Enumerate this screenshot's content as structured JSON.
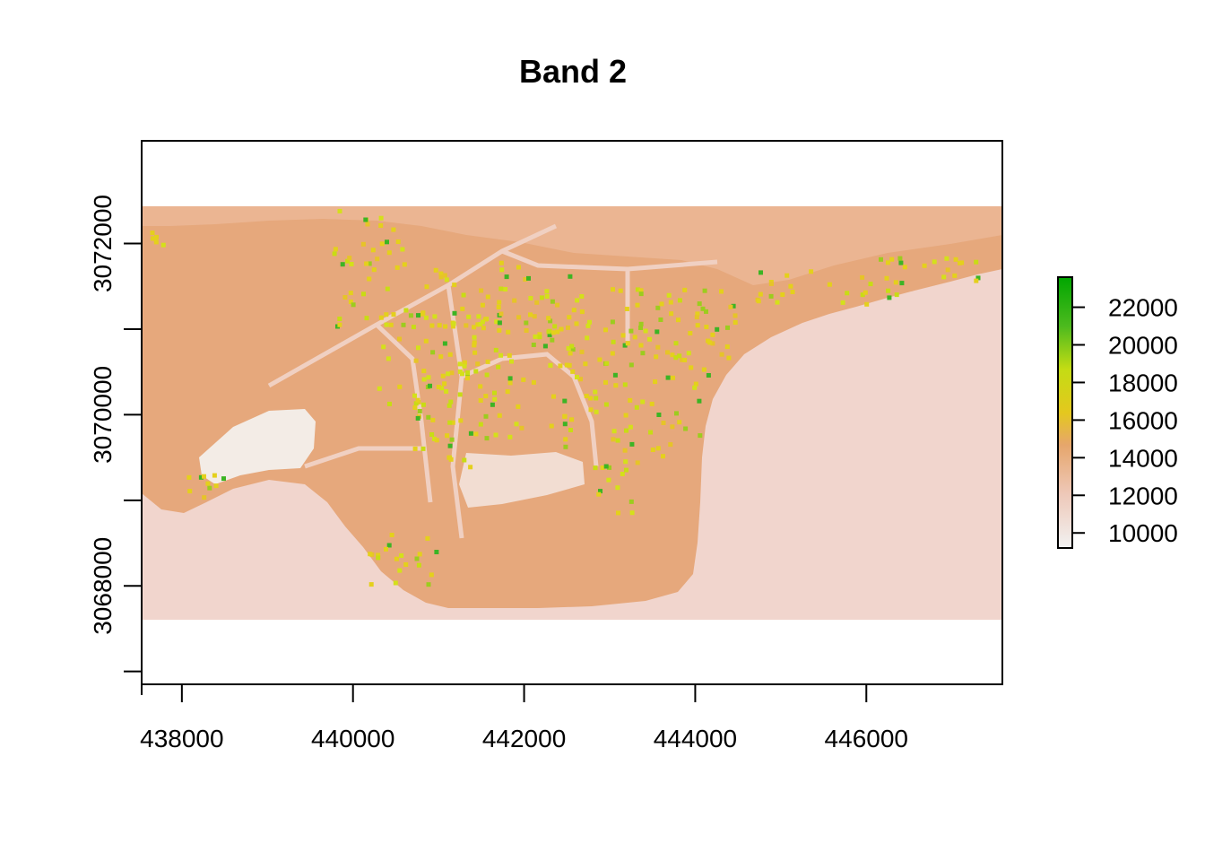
{
  "title": "Band 2",
  "chart_data": {
    "type": "heatmap",
    "title": "Band 2",
    "xlabel": "",
    "ylabel": "",
    "x_ticks": [
      438000,
      440000,
      442000,
      444000,
      446000
    ],
    "x_tick_labels": [
      "438000",
      "440000",
      "442000",
      "444000",
      "446000"
    ],
    "y_ticks": [
      3068000,
      3070000,
      3072000
    ],
    "y_tick_labels": [
      "3068000",
      "3070000",
      "3072000"
    ],
    "xlim": [
      437530,
      447590
    ],
    "ylim": [
      3066850,
      3073200
    ],
    "raster_extent": {
      "x": [
        437530,
        447590
      ],
      "y": [
        3067750,
        3072570
      ]
    },
    "legend": {
      "ticks": [
        10000,
        12000,
        14000,
        16000,
        18000,
        20000,
        22000
      ],
      "tick_labels": [
        "10000",
        "12000",
        "14000",
        "16000",
        "18000",
        "20000",
        "22000"
      ],
      "range": [
        9200,
        23600
      ],
      "colors": [
        "#f2f2f2",
        "#eec8b8",
        "#e6a66c",
        "#e4c81e",
        "#c4dc14",
        "#4cba1e",
        "#00a600"
      ],
      "placement": "right"
    },
    "legend_placement": "right",
    "grid": false
  }
}
